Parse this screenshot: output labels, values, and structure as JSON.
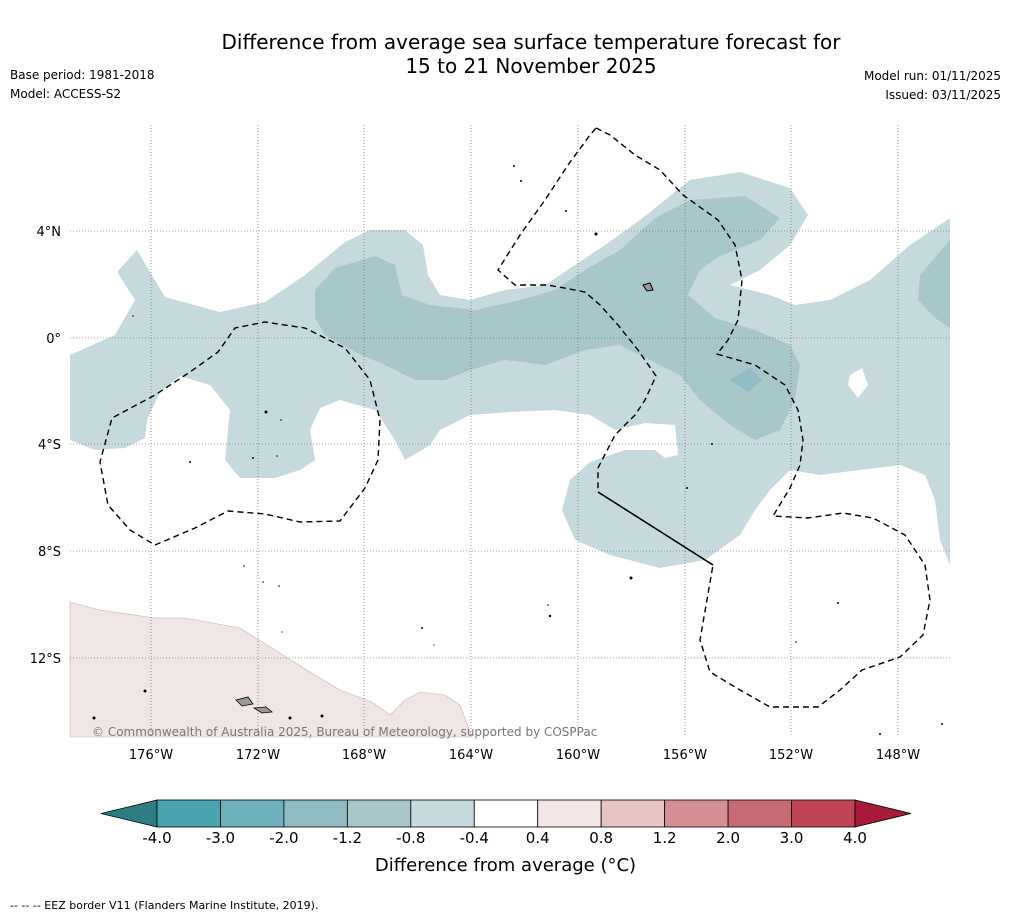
{
  "title": {
    "line1": "Difference from average sea surface temperature forecast for",
    "line2": "15 to 21 November 2025"
  },
  "meta_left": {
    "base_period": "Base period: 1981-2018",
    "model": "Model: ACCESS-S2"
  },
  "meta_right": {
    "model_run": "Model run: 01/11/2025",
    "issued": "Issued: 03/11/2025"
  },
  "map": {
    "lat_labels": [
      "4°N",
      "0°",
      "4°S",
      "8°S",
      "12°S"
    ],
    "lon_labels": [
      "176°W",
      "172°W",
      "168°W",
      "164°W",
      "160°W",
      "156°W",
      "152°W",
      "148°W"
    ],
    "copyright": "© Commonwealth of Australia 2025, Bureau of Meteorology, supported by COSPPac",
    "colors": {
      "light_blue": "#c6dadd",
      "mid_blue": "#a8c7cb",
      "darker_blue": "#8fbdc3",
      "light_pink": "#f1e6e6",
      "land": "#9a9a9a"
    }
  },
  "colorbar": {
    "ticks": [
      "-4.0",
      "-3.0",
      "-2.0",
      "-1.2",
      "-0.8",
      "-0.4",
      "0.4",
      "0.8",
      "1.2",
      "2.0",
      "3.0",
      "4.0"
    ],
    "colors": [
      "#4aa3b1",
      "#6eb0bc",
      "#8fbcc2",
      "#a8c7cb",
      "#c6dadd",
      "#ffffff",
      "#f3e6e6",
      "#e7c3c1",
      "#d48f95",
      "#c86a74",
      "#bf4555"
    ],
    "under_color": "#2f7d84",
    "over_color": "#a8193a",
    "label": "Difference from average (°C)"
  },
  "footnote": "-- -- -- EEZ border V11 (Flanders Marine Institute, 2019)."
}
